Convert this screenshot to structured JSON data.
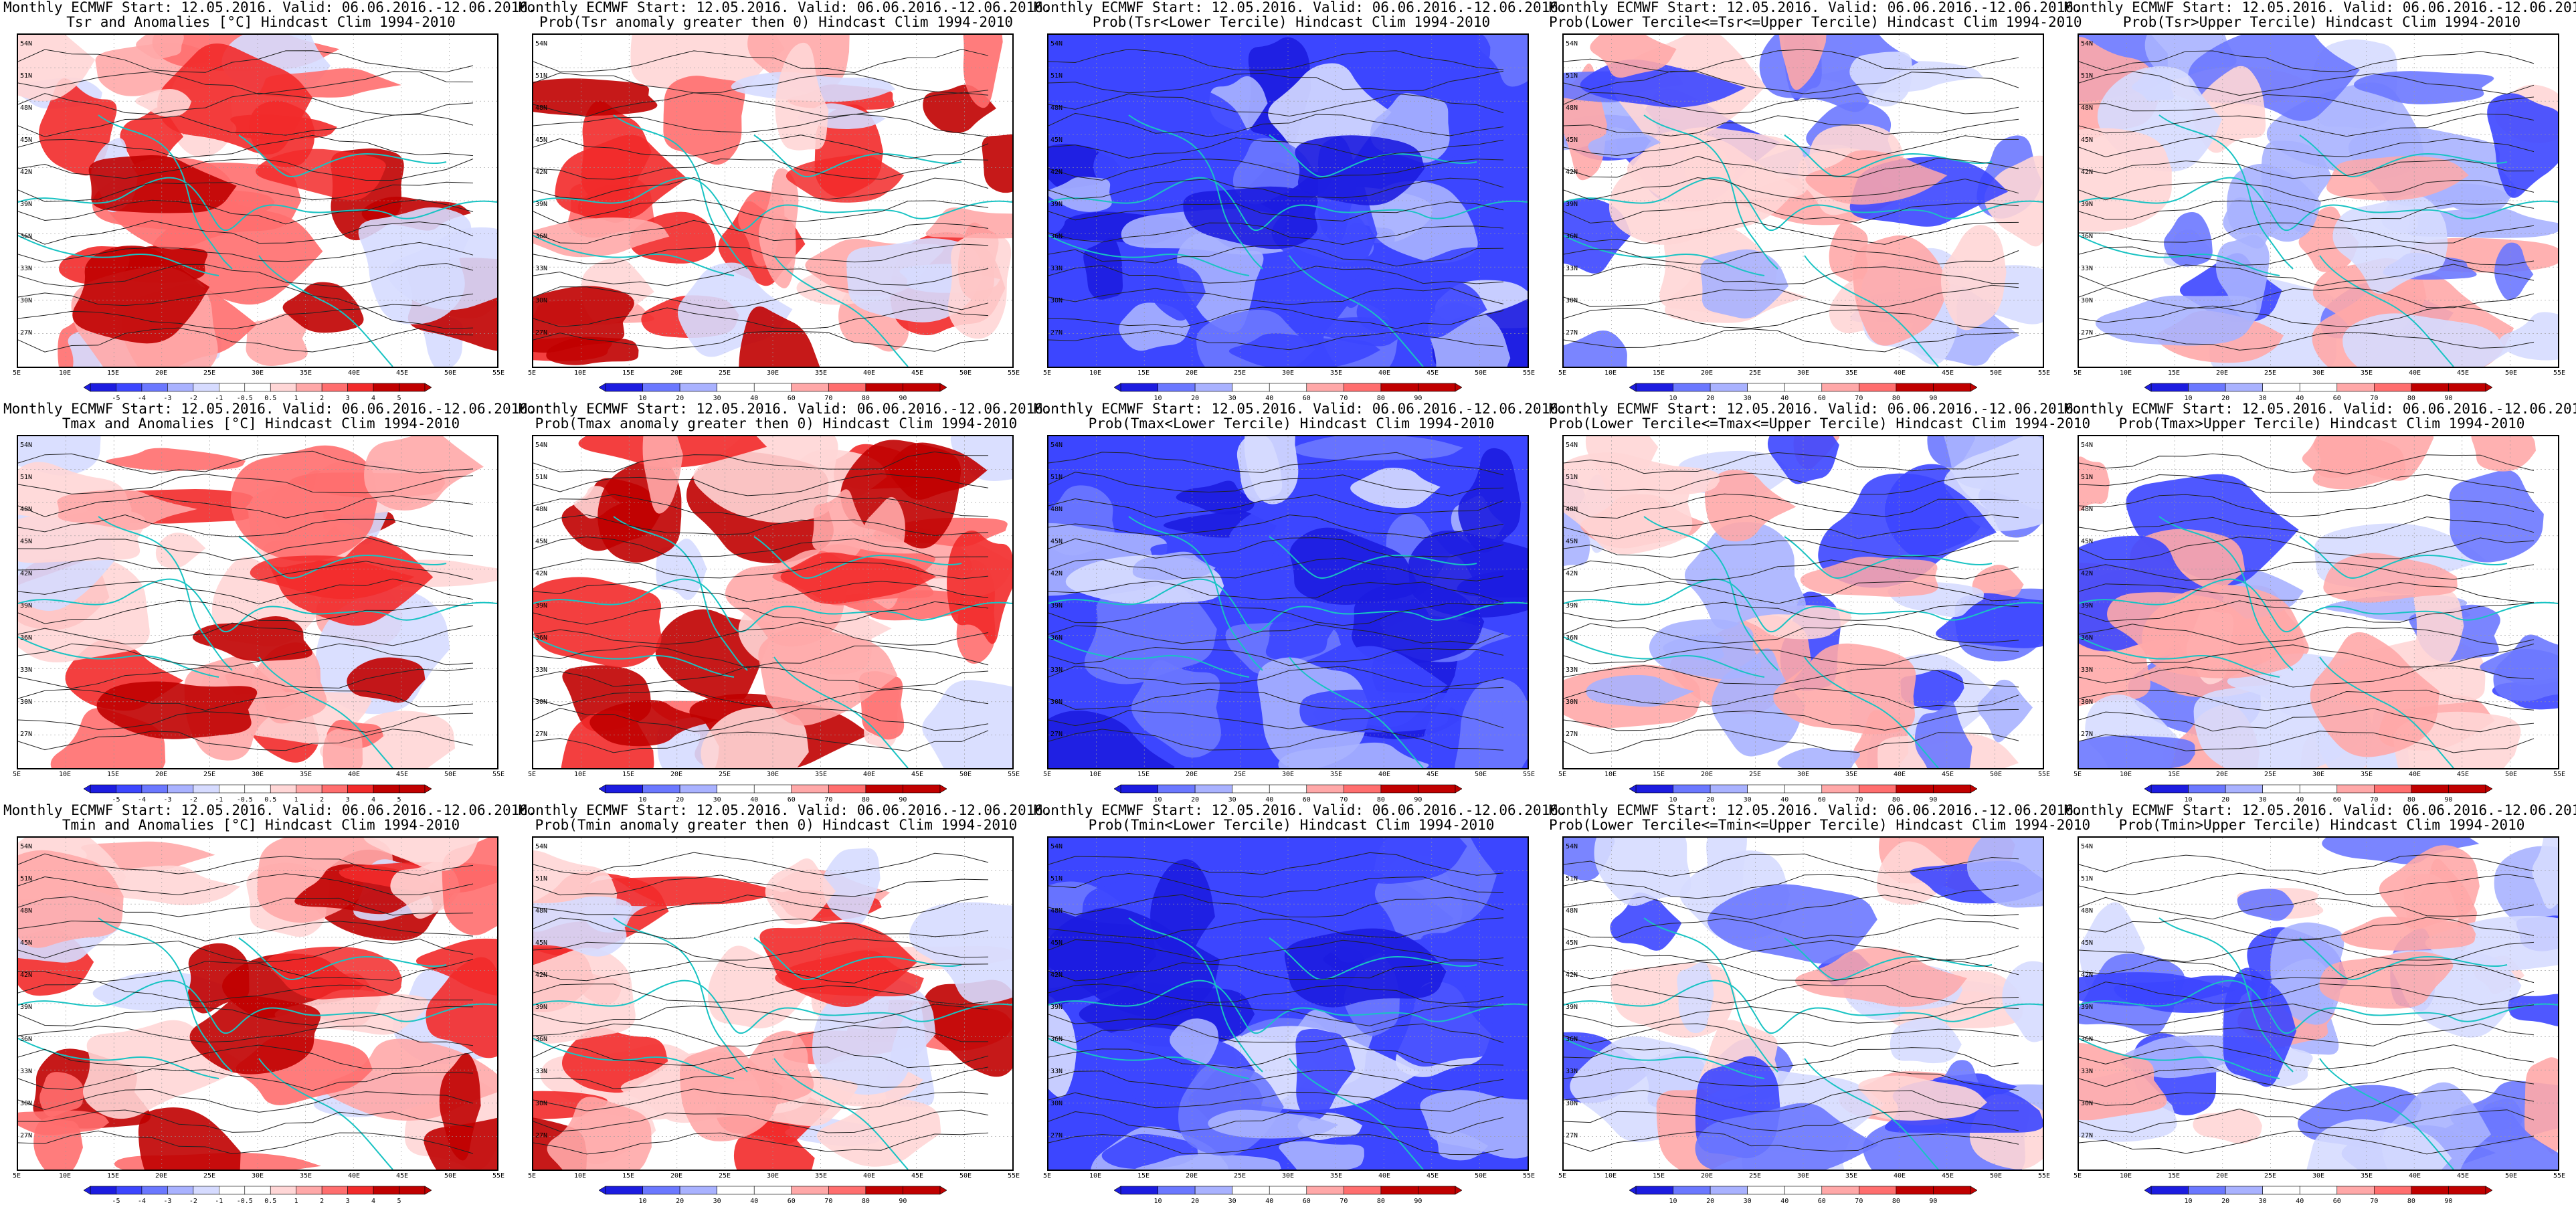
{
  "header": "Monthly ECMWF Start: 12.05.2016. Valid: 06.06.2016.-12.06.2016.",
  "lat_ticks": [
    "54N",
    "51N",
    "48N",
    "45N",
    "42N",
    "39N",
    "36N",
    "33N",
    "30N",
    "27N"
  ],
  "lon_ticks": [
    "5E",
    "10E",
    "15E",
    "20E",
    "25E",
    "30E",
    "35E",
    "40E",
    "45E",
    "50E",
    "55E"
  ],
  "colors": {
    "deep_blue": "#1c1ce0",
    "blue": "#3c46ff",
    "mid_blue": "#6b78ff",
    "light_blue": "#a9b2ff",
    "pale_blue": "#d6dbff",
    "white": "#ffffff",
    "pale_red": "#ffd6d6",
    "light_red": "#ffa8a8",
    "mid_red": "#ff6e6e",
    "red": "#f22a2a",
    "deep_red": "#c00000",
    "coast": "#19c3c3",
    "contour": "#222222"
  },
  "anom_scale": [
    "-5",
    "-4",
    "-3",
    "-2",
    "-1",
    "-0.5",
    "0.5",
    "1",
    "2",
    "3",
    "4",
    "5"
  ],
  "prob_scale": [
    "10",
    "20",
    "30",
    "40",
    "60",
    "70",
    "80",
    "90"
  ],
  "panels": [
    {
      "row": 0,
      "col": 0,
      "subtitle": "Tsr and Anomalies [°C] Hindcast Clim 1994-2010",
      "kind": "anom",
      "tone": "warm"
    },
    {
      "row": 0,
      "col": 1,
      "subtitle": "Prob(Tsr anomaly greater then 0) Hindcast Clim 1994-2010",
      "kind": "prob",
      "tone": "warm"
    },
    {
      "row": 0,
      "col": 2,
      "subtitle": "Prob(Tsr<Lower Tercile) Hindcast Clim 1994-2010",
      "kind": "prob",
      "tone": "cold"
    },
    {
      "row": 0,
      "col": 3,
      "subtitle": "Prob(Lower Tercile<=Tsr<=Upper Tercile) Hindcast Clim 1994-2010",
      "kind": "prob",
      "tone": "mixed"
    },
    {
      "row": 0,
      "col": 4,
      "subtitle": "Prob(Tsr>Upper Tercile) Hindcast Clim 1994-2010",
      "kind": "prob",
      "tone": "mixed"
    },
    {
      "row": 1,
      "col": 0,
      "subtitle": "Tmax and Anomalies [°C] Hindcast Clim 1994-2010",
      "kind": "anom",
      "tone": "warm"
    },
    {
      "row": 1,
      "col": 1,
      "subtitle": "Prob(Tmax anomaly greater then 0) Hindcast Clim 1994-2010",
      "kind": "prob",
      "tone": "warm"
    },
    {
      "row": 1,
      "col": 2,
      "subtitle": "Prob(Tmax<Lower Tercile) Hindcast Clim 1994-2010",
      "kind": "prob",
      "tone": "cold"
    },
    {
      "row": 1,
      "col": 3,
      "subtitle": "Prob(Lower Tercile<=Tmax<=Upper Tercile) Hindcast Clim 1994-2010",
      "kind": "prob",
      "tone": "mixed"
    },
    {
      "row": 1,
      "col": 4,
      "subtitle": "Prob(Tmax>Upper Tercile) Hindcast Clim 1994-2010",
      "kind": "prob",
      "tone": "mixed"
    },
    {
      "row": 2,
      "col": 0,
      "subtitle": "Tmin and Anomalies [°C] Hindcast Clim 1994-2010",
      "kind": "anom",
      "tone": "warm"
    },
    {
      "row": 2,
      "col": 1,
      "subtitle": "Prob(Tmin anomaly greater then 0) Hindcast Clim 1994-2010",
      "kind": "prob",
      "tone": "warm"
    },
    {
      "row": 2,
      "col": 2,
      "subtitle": "Prob(Tmin<Lower Tercile) Hindcast Clim 1994-2010",
      "kind": "prob",
      "tone": "cold"
    },
    {
      "row": 2,
      "col": 3,
      "subtitle": "Prob(Lower Tercile<=Tmin<=Upper Tercile) Hindcast Clim 1994-2010",
      "kind": "prob",
      "tone": "mixed"
    },
    {
      "row": 2,
      "col": 4,
      "subtitle": "Prob(Tmin>Upper Tercile) Hindcast Clim 1994-2010",
      "kind": "prob",
      "tone": "mixed"
    }
  ]
}
